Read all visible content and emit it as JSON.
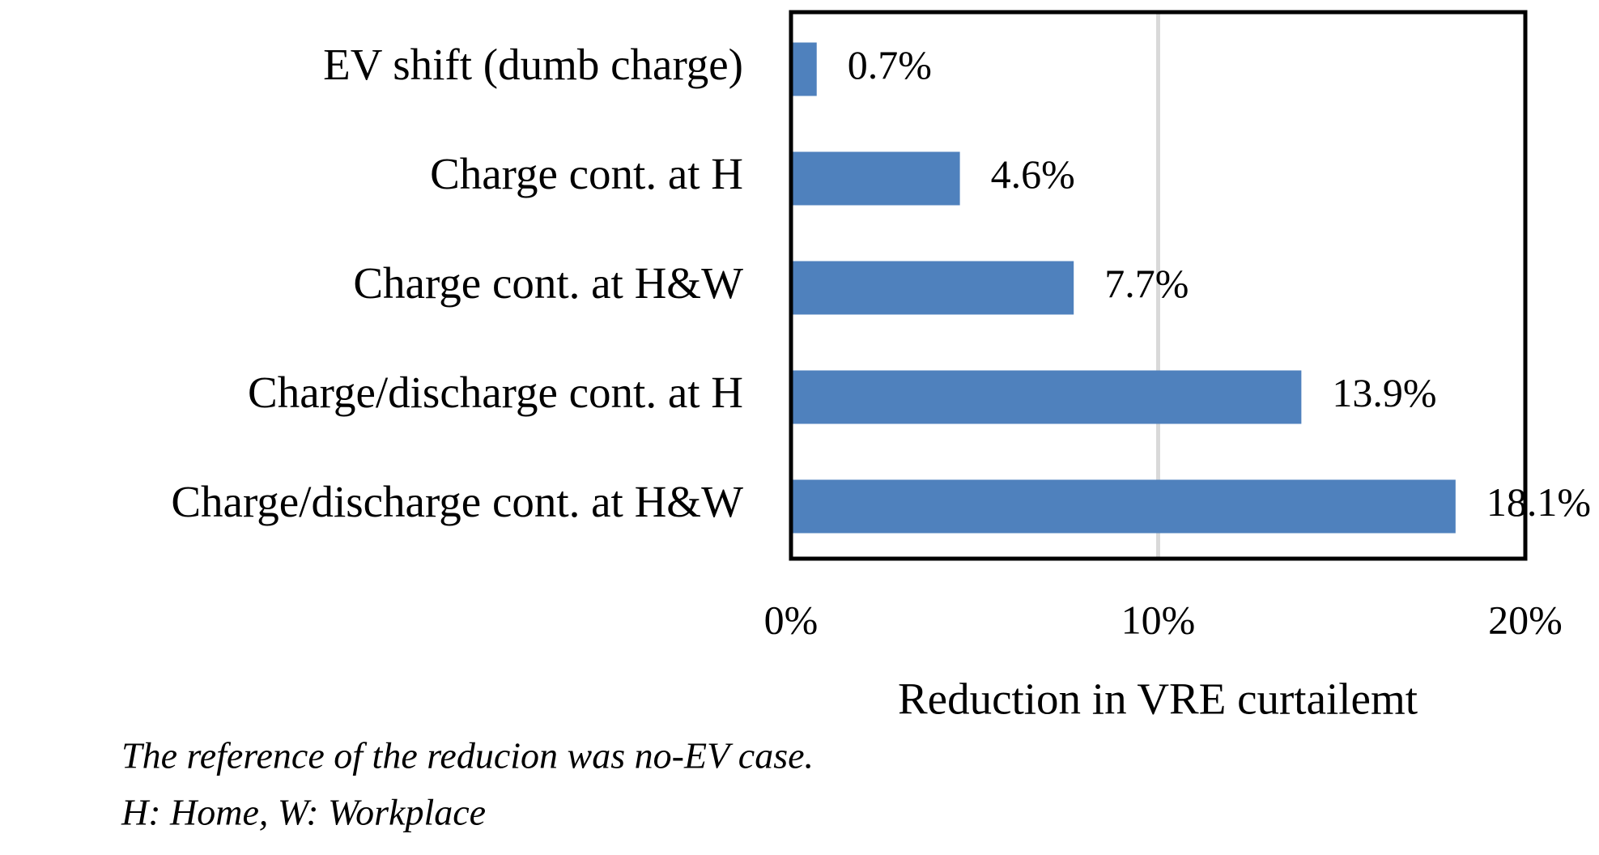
{
  "chart_data": {
    "type": "bar",
    "orientation": "horizontal",
    "categories": [
      "EV shift (dumb charge)",
      "Charge cont. at H",
      "Charge cont. at H&W",
      "Charge/discharge cont. at H",
      "Charge/discharge cont. at H&W"
    ],
    "values": [
      0.7,
      4.6,
      7.7,
      13.9,
      18.1
    ],
    "value_labels": [
      "0.7%",
      "4.6%",
      "7.7%",
      "13.9%",
      "18.1%"
    ],
    "color": "#4f81bd",
    "xlim": [
      0,
      20
    ],
    "xticks": [
      {
        "value": 0,
        "label": "0%"
      },
      {
        "value": 10,
        "label": "10%"
      },
      {
        "value": 20,
        "label": "20%"
      }
    ],
    "xlabel": "Reduction in VRE curtailemt",
    "grid": true,
    "notes": [
      "The reference of the reducion was no-EV case.",
      "H: Home, W: Workplace"
    ]
  }
}
